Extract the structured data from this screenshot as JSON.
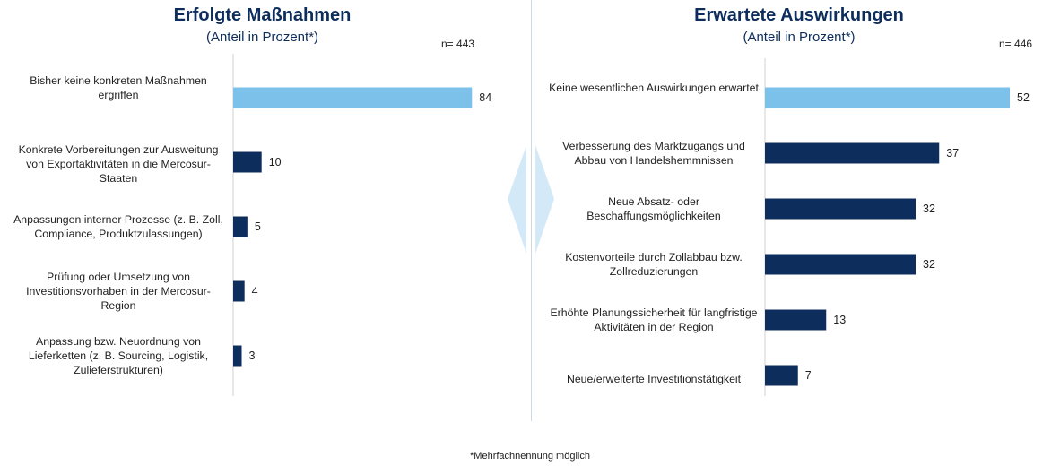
{
  "chart_data": [
    {
      "type": "bar",
      "orientation": "horizontal",
      "title": "Erfolgte Maßnahmen",
      "subtitle": "(Anteil in Prozent*)",
      "n_label": "n= 443",
      "categories": [
        "Bisher keine konkreten Maßnahmen ergriffen",
        "Konkrete Vorbereitungen zur Ausweitung von Exportaktivitäten in die Mercosur-Staaten",
        "Anpassungen interner Prozesse (z. B. Zoll, Compliance, Produktzulassungen)",
        "Prüfung oder Umsetzung von Investitionsvorhaben in der Mercosur-Region",
        "Anpassung bzw. Neuordnung von Lieferketten (z. B. Sourcing, Logistik, Zulieferstrukturen)"
      ],
      "values": [
        84,
        10,
        5,
        4,
        3
      ],
      "highlight_index": 0,
      "xlim": [
        0,
        100
      ]
    },
    {
      "type": "bar",
      "orientation": "horizontal",
      "title": "Erwartete Auswirkungen",
      "subtitle": "(Anteil in Prozent*)",
      "n_label": "n= 446",
      "categories": [
        "Keine wesentlichen Auswirkungen erwartet",
        "Verbesserung des Marktzugangs und Abbau von Handelshemmnissen",
        "Neue Absatz- oder Beschaffungsmöglichkeiten",
        "Kostenvorteile durch Zollabbau bzw. Zollreduzierungen",
        "Erhöhte Planungssicherheit für langfristige Aktivitäten in der Region",
        "Neue/erweiterte Investitionstätigkeit"
      ],
      "values": [
        52,
        37,
        32,
        32,
        13,
        7
      ],
      "highlight_index": 0,
      "xlim": [
        0,
        60
      ]
    }
  ],
  "footnote": "*Mehrfachnennung möglich",
  "colors": {
    "highlight_bar": "#7cc1ea",
    "bar": "#0d2e5c",
    "axis": "#d0d0d0",
    "arrow": "#d3e9f7"
  }
}
